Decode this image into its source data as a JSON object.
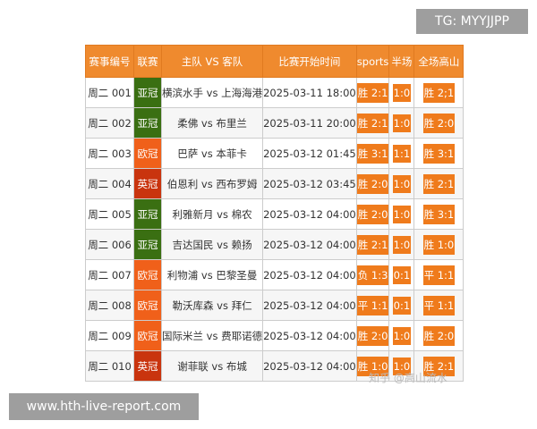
{
  "banner_tg": "TG: MYYJJPP",
  "banner_site": "www.hth-live-report.com",
  "watermark": "知乎 @高山流水",
  "colors": {
    "header": "#ef8a2e",
    "亚冠": "#3a6f12",
    "欧冠": "#f0601a",
    "英冠": "#c9340e",
    "badge": "#ef7b1c"
  },
  "headers": [
    "赛事编号",
    "联赛",
    "主队 VS 客队",
    "比赛开始时间",
    "sports",
    "半场",
    "全场高山"
  ],
  "rows": [
    {
      "id": "周二 001",
      "league": "亚冠",
      "match": "横滨水手 vs 上海海港",
      "time": "2025-03-11 18:00",
      "sports": "胜 2:1",
      "half": "1:0",
      "full": "胜 2;1"
    },
    {
      "id": "周二 002",
      "league": "亚冠",
      "match": "柔佛 vs 布里兰",
      "time": "2025-03-11 20:00",
      "sports": "胜 2:1",
      "half": "1:0",
      "full": "胜 2:0"
    },
    {
      "id": "周二 003",
      "league": "欧冠",
      "match": "巴萨 vs 本菲卡",
      "time": "2025-03-12 01:45",
      "sports": "胜 3:1",
      "half": "1:1",
      "full": "胜 3:1"
    },
    {
      "id": "周二 004",
      "league": "英冠",
      "match": "伯恩利 vs 西布罗姆",
      "time": "2025-03-12 03:45",
      "sports": "胜 2:0",
      "half": "1:0",
      "full": "胜 2:1"
    },
    {
      "id": "周二 005",
      "league": "亚冠",
      "match": "利雅新月 vs 棉农",
      "time": "2025-03-12 04:00",
      "sports": "胜 2:0",
      "half": "1:0",
      "full": "胜 3:1"
    },
    {
      "id": "周二 006",
      "league": "亚冠",
      "match": "吉达国民 vs 赖扬",
      "time": "2025-03-12 04:00",
      "sports": "胜 2:1",
      "half": "1:0",
      "full": "胜 1:0"
    },
    {
      "id": "周二 007",
      "league": "欧冠",
      "match": "利物浦 vs 巴黎圣曼",
      "time": "2025-03-12 04:00",
      "sports": "负 1:3",
      "half": "0:1",
      "full": "平 1:1"
    },
    {
      "id": "周二 008",
      "league": "欧冠",
      "match": "勒沃库森 vs 拜仁",
      "time": "2025-03-12 04:00",
      "sports": "平 1:1",
      "half": "0:1",
      "full": "平 1:1"
    },
    {
      "id": "周二 009",
      "league": "欧冠",
      "match": "国际米兰 vs 费耶诺德",
      "time": "2025-03-12 04:00",
      "sports": "胜 2:0",
      "half": "1:0",
      "full": "胜 2:0"
    },
    {
      "id": "周二 010",
      "league": "英冠",
      "match": "谢菲联 vs 布城",
      "time": "2025-03-12 04:00",
      "sports": "胜 1:0",
      "half": "1:0",
      "full": "胜 2:1"
    }
  ]
}
